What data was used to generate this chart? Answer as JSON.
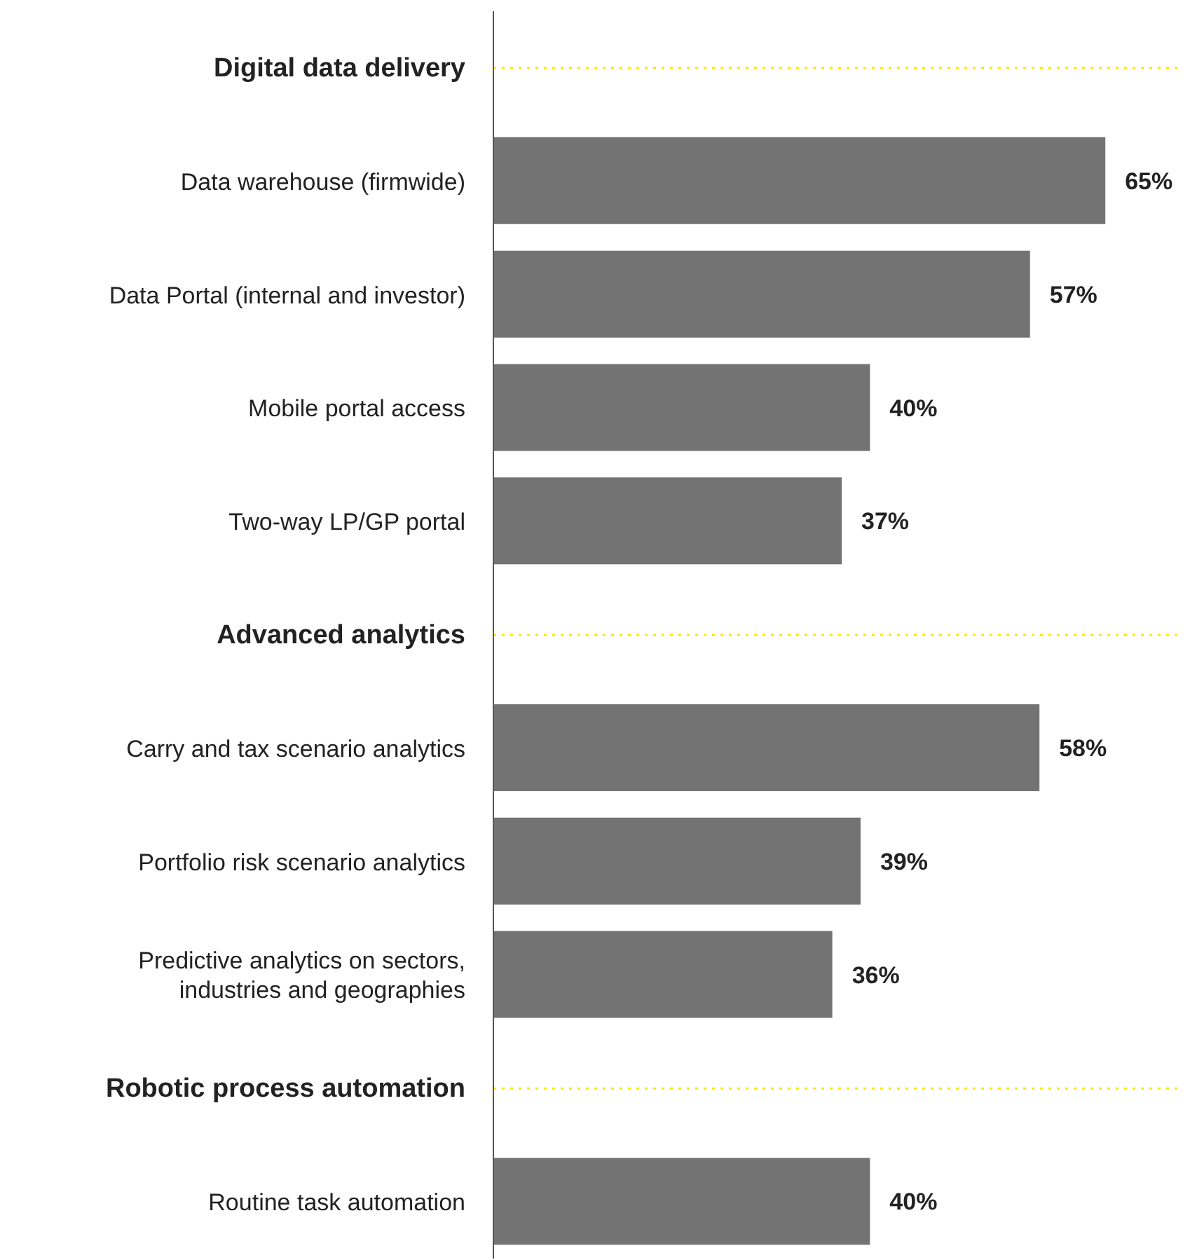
{
  "chart_data": {
    "type": "bar",
    "orientation": "horizontal",
    "categories": [
      "Digital data delivery",
      "Data warehouse (firmwide)",
      "Data Portal (internal and investor)",
      "Mobile portal access",
      "Two-way LP/GP portal",
      "Advanced analytics",
      "Carry and tax scenario analytics",
      "Portfolio risk scenario analytics",
      "Predictive analytics on sectors, industries and geographies",
      "Robotic process automation",
      "Routine task automation"
    ],
    "values": [
      null,
      65,
      57,
      40,
      37,
      null,
      58,
      39,
      36,
      null,
      40
    ],
    "value_labels": [
      null,
      "65%",
      "57%",
      "40%",
      "37%",
      null,
      "58%",
      "39%",
      "36%",
      null,
      "40%"
    ],
    "color": "#737373",
    "ref_lines": [
      {
        "axis": "y",
        "value": "Digital data delivery",
        "color": "#ffe600",
        "line_style": "dotted"
      },
      {
        "axis": "y",
        "value": "Advanced analytics",
        "color": "#ffe600",
        "line_style": "dotted"
      },
      {
        "axis": "y",
        "value": "Robotic process automation",
        "color": "#ffe600",
        "line_style": "dotted"
      }
    ]
  }
}
